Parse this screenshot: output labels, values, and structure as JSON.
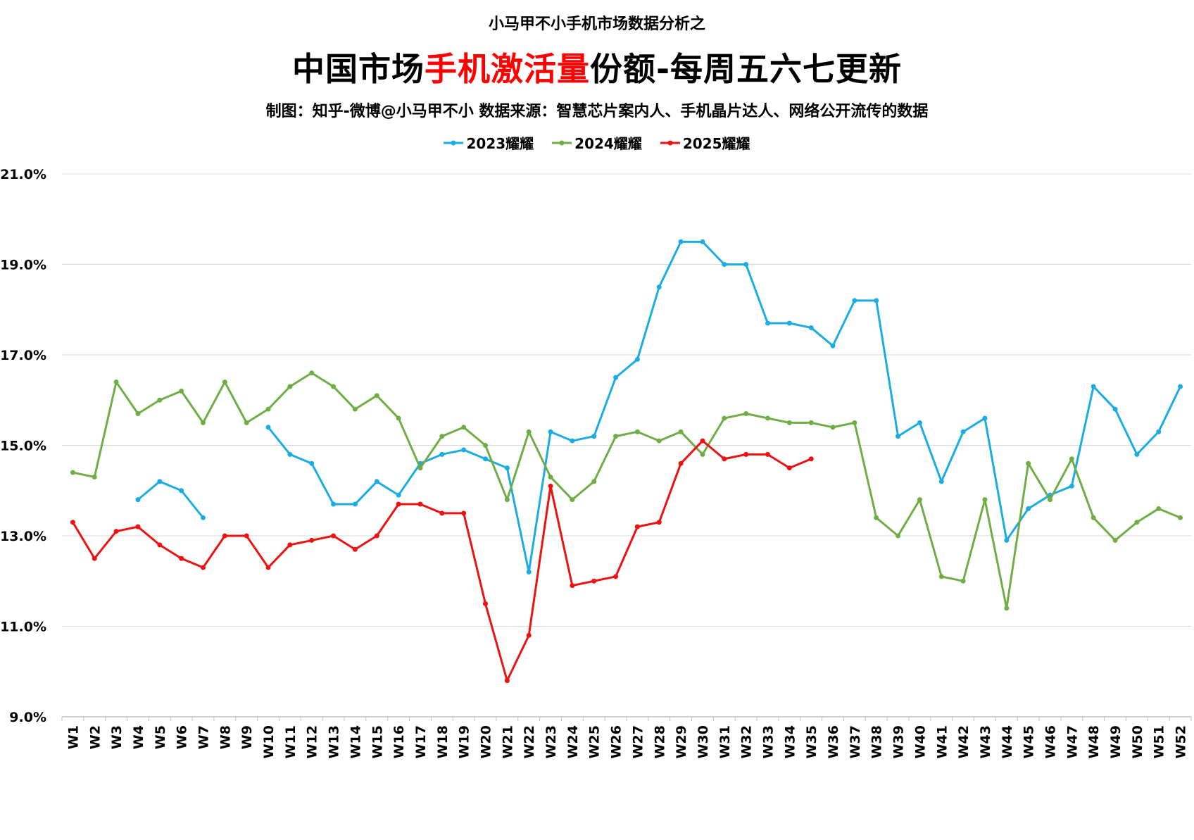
{
  "header": {
    "supertitle": "小马甲不小手机市场数据分析之",
    "title_parts": [
      "中国市场",
      "手机激活量",
      "份额-每周五六七更新"
    ],
    "subtitle": "制图：知乎-微博@小马甲不小   数据来源：智慧芯片案内人、手机晶片达人、网络公开流传的数据"
  },
  "colors": {
    "title_highlight": "#ff0000",
    "grid": "#d9d9d9"
  },
  "chart_data": {
    "type": "line",
    "title": "中国市场手机激活量份额-每周五六七更新",
    "ylim": [
      9.0,
      21.0
    ],
    "y_ticks": [
      9.0,
      11.0,
      13.0,
      15.0,
      17.0,
      19.0,
      21.0
    ],
    "y_tick_labels": [
      "9.0%",
      "11.0%",
      "13.0%",
      "15.0%",
      "17.0%",
      "19.0%",
      "21.0%"
    ],
    "legend_position": "top",
    "grid": "horizontal",
    "categories": [
      "W1",
      "W2",
      "W3",
      "W4",
      "W5",
      "W6",
      "W7",
      "W8",
      "W9",
      "W10",
      "W11",
      "W12",
      "W13",
      "W14",
      "W15",
      "W16",
      "W17",
      "W18",
      "W19",
      "W20",
      "W21",
      "W22",
      "W23",
      "W24",
      "W25",
      "W26",
      "W27",
      "W28",
      "W29",
      "W30",
      "W31",
      "W32",
      "W33",
      "W34",
      "W35",
      "W36",
      "W37",
      "W38",
      "W39",
      "W40",
      "W41",
      "W42",
      "W43",
      "W44",
      "W45",
      "W46",
      "W47",
      "W48",
      "W49",
      "W50",
      "W51",
      "W52"
    ],
    "series": [
      {
        "name": "2023耀耀",
        "color": "#1aace2",
        "values": [
          null,
          null,
          null,
          13.8,
          14.2,
          14.0,
          13.4,
          null,
          null,
          15.4,
          14.8,
          14.6,
          13.7,
          13.7,
          14.2,
          13.9,
          14.6,
          14.8,
          14.9,
          14.7,
          14.5,
          12.2,
          15.3,
          15.1,
          15.2,
          16.5,
          16.9,
          18.5,
          19.5,
          19.5,
          19.0,
          19.0,
          17.7,
          17.7,
          17.6,
          17.2,
          18.2,
          18.2,
          15.2,
          15.5,
          14.2,
          15.3,
          15.6,
          12.9,
          13.6,
          13.9,
          14.1,
          16.3,
          15.8,
          14.8,
          15.3,
          16.3
        ]
      },
      {
        "name": "2024耀耀",
        "color": "#70ad47",
        "values": [
          14.4,
          14.3,
          16.4,
          15.7,
          16.0,
          16.2,
          15.5,
          16.4,
          15.5,
          15.8,
          16.3,
          16.6,
          16.3,
          15.8,
          16.1,
          15.6,
          14.5,
          15.2,
          15.4,
          15.0,
          13.8,
          15.3,
          14.3,
          13.8,
          14.2,
          15.2,
          15.3,
          15.1,
          15.3,
          14.8,
          15.6,
          15.7,
          15.6,
          15.5,
          15.5,
          15.4,
          15.5,
          13.4,
          13.0,
          13.8,
          12.1,
          12.0,
          13.8,
          11.4,
          14.6,
          13.8,
          14.7,
          13.4,
          12.9,
          13.3,
          13.6,
          13.4
        ]
      },
      {
        "name": "2025耀耀",
        "color": "#ee1111",
        "values": [
          13.3,
          12.5,
          13.1,
          13.2,
          12.8,
          12.5,
          12.3,
          13.0,
          13.0,
          12.3,
          12.8,
          12.9,
          13.0,
          12.7,
          13.0,
          13.7,
          13.7,
          13.5,
          13.5,
          11.5,
          9.8,
          10.8,
          14.1,
          11.9,
          12.0,
          12.1,
          13.2,
          13.3,
          14.6,
          15.1,
          14.7,
          14.8,
          14.8,
          14.5,
          14.7,
          null,
          null,
          null,
          null,
          null,
          null,
          null,
          null,
          null,
          null,
          null,
          null,
          null,
          null,
          null,
          null,
          null
        ]
      }
    ]
  }
}
